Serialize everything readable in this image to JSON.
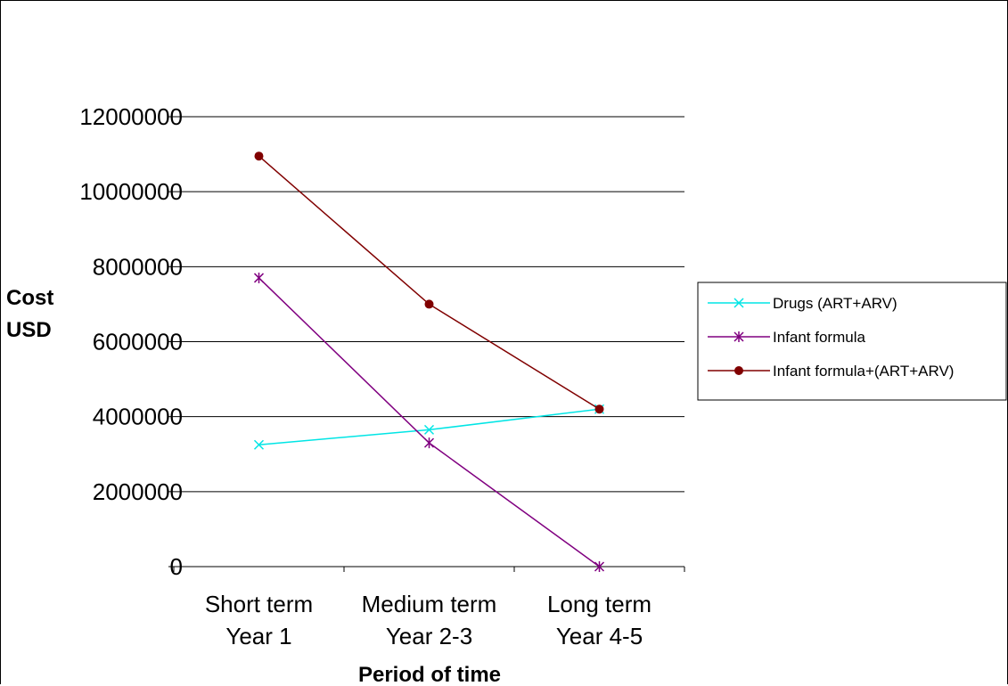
{
  "chart_data": {
    "type": "line",
    "title": "",
    "xlabel": "Period of time",
    "ylabel": [
      "Cost",
      "USD"
    ],
    "ylim": [
      0,
      12000000
    ],
    "yticks": [
      "0",
      "2000000",
      "4000000",
      "6000000",
      "8000000",
      "10000000",
      "12000000"
    ],
    "categories": [
      [
        "Short term",
        "Year 1"
      ],
      [
        "Medium term",
        "Year 2-3"
      ],
      [
        "Long term",
        "Year 4-5"
      ]
    ],
    "grid": true,
    "legend_position": "right",
    "series": [
      {
        "name": "Drugs (ART+ARV)",
        "values": [
          3250000,
          3650000,
          4200000
        ],
        "color": "#00e5e5",
        "marker": "x"
      },
      {
        "name": "Infant formula",
        "values": [
          7700000,
          3300000,
          0
        ],
        "color": "#800080",
        "marker": "asterisk"
      },
      {
        "name": "Infant formula+(ART+ARV)",
        "values": [
          10950000,
          7000000,
          4200000
        ],
        "color": "#800000",
        "marker": "circle"
      }
    ]
  }
}
